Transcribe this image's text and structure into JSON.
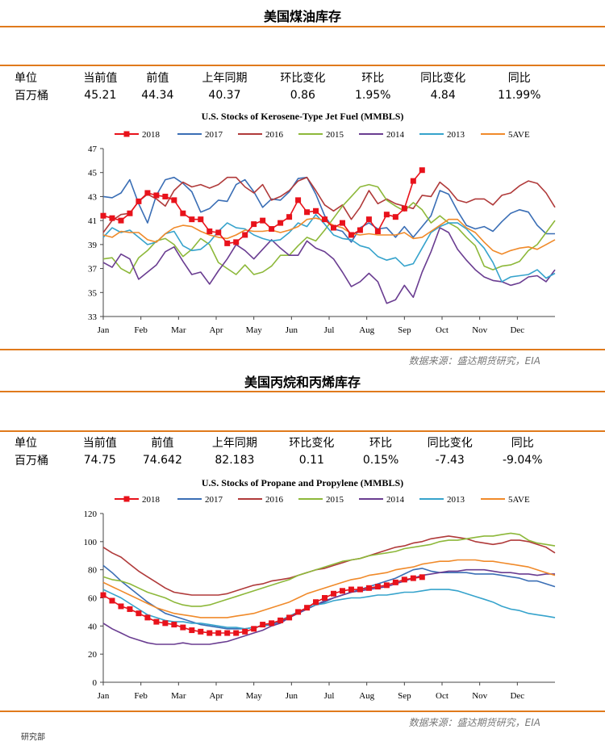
{
  "panels": [
    {
      "heading": "美国煤油库存",
      "stats_headers": [
        "单位",
        "当前值",
        "前值",
        "上年同期",
        "环比变化",
        "环比",
        "同比变化",
        "同比"
      ],
      "stats_values": [
        "百万桶",
        "45.21",
        "44.34",
        "40.37",
        "0.86",
        "1.95%",
        "4.84",
        "11.99%"
      ],
      "source": "数据来源：盛达期货研究，EIA"
    },
    {
      "heading": "美国丙烷和丙烯库存",
      "stats_headers": [
        "单位",
        "当前值",
        "前值",
        "上年同期",
        "环比变化",
        "环比",
        "同比变化",
        "同比"
      ],
      "stats_values": [
        "百万桶",
        "74.75",
        "74.642",
        "82.183",
        "0.11",
        "0.15%",
        "-7.43",
        "-9.04%"
      ],
      "source": "数据来源：盛达期货研究，EIA"
    }
  ],
  "footer_fragment": "研究部",
  "chart_data": [
    {
      "type": "line",
      "title": "U.S.  Stocks of Kerosene-Type Jet Fuel (MMBLS)",
      "xlabel": "",
      "ylabel": "",
      "x_ticks": [
        "Jan",
        "Feb",
        "Mar",
        "Apr",
        "May",
        "Jun",
        "Jul",
        "Aug",
        "Sep",
        "Oct",
        "Nov",
        "Dec"
      ],
      "y_ticks": [
        33,
        35,
        37,
        39,
        41,
        43,
        45,
        47
      ],
      "ylim": [
        33,
        47
      ],
      "x_domain_weeks": [
        1,
        52
      ],
      "legend_position": "top",
      "grid": false,
      "series": [
        {
          "name": "2018",
          "color": "#e8121b",
          "marker": "square",
          "weeks": [
            1,
            2,
            3,
            4,
            5,
            6,
            7,
            8,
            9,
            10,
            11,
            12,
            13,
            14,
            15,
            16,
            17,
            18,
            19,
            20,
            21,
            22,
            23,
            24,
            25,
            26,
            27,
            28,
            29,
            30,
            31,
            32,
            33,
            34,
            35,
            36,
            37
          ],
          "values": [
            41.4,
            41.2,
            41.0,
            41.6,
            42.6,
            43.3,
            43.1,
            43.0,
            42.7,
            41.6,
            41.1,
            41.1,
            40.1,
            40.0,
            39.1,
            39.2,
            39.8,
            40.7,
            41.0,
            40.3,
            40.8,
            41.3,
            42.7,
            41.7,
            41.8,
            41.1,
            40.4,
            40.8,
            39.8,
            40.2,
            41.1,
            40.1,
            41.5,
            41.3,
            42.0,
            44.3,
            45.2
          ]
        },
        {
          "name": "2017",
          "color": "#3a6eb5",
          "values": [
            43.0,
            42.9,
            43.3,
            44.4,
            42.4,
            40.8,
            43.1,
            44.4,
            44.6,
            44.1,
            43.4,
            41.7,
            42.0,
            42.7,
            42.6,
            44.0,
            44.4,
            43.4,
            42.1,
            42.8,
            42.7,
            43.4,
            44.5,
            44.6,
            43.2,
            41.4,
            40.3,
            40.1,
            39.2,
            40.4,
            40.8,
            40.3,
            40.4,
            39.6,
            40.5,
            39.6,
            40.5,
            41.4,
            43.5,
            43.2,
            41.8,
            40.6,
            40.3,
            40.5,
            40.1,
            40.9,
            41.6,
            41.9,
            41.7,
            40.6,
            39.9,
            39.9
          ]
        },
        {
          "name": "2016",
          "color": "#b03a3a",
          "values": [
            40.0,
            41.0,
            41.5,
            41.6,
            42.6,
            43.2,
            42.8,
            42.2,
            43.5,
            44.2,
            43.8,
            44.0,
            43.7,
            44.0,
            44.6,
            44.6,
            43.8,
            43.3,
            44.0,
            42.7,
            43.0,
            43.5,
            44.3,
            44.6,
            43.5,
            42.3,
            41.8,
            42.3,
            41.1,
            42.1,
            43.5,
            42.4,
            42.8,
            42.4,
            42.2,
            42.0,
            43.1,
            43.0,
            44.2,
            43.6,
            42.7,
            42.5,
            42.8,
            42.8,
            42.3,
            43.1,
            43.3,
            43.9,
            44.3,
            44.1,
            43.3,
            42.1
          ]
        },
        {
          "name": "2015",
          "color": "#8db83a",
          "values": [
            37.8,
            37.9,
            37.0,
            36.6,
            37.9,
            38.5,
            39.3,
            39.5,
            39.0,
            38.0,
            38.6,
            39.5,
            39.0,
            37.5,
            37.0,
            36.5,
            37.3,
            36.5,
            36.7,
            37.2,
            38.1,
            38.1,
            38.9,
            39.6,
            39.3,
            40.2,
            41.2,
            42.2,
            43.0,
            43.8,
            44.0,
            43.8,
            42.7,
            42.2,
            41.8,
            42.5,
            41.9,
            40.8,
            41.4,
            40.8,
            40.4,
            39.6,
            38.9,
            37.2,
            36.9,
            37.2,
            37.3,
            37.6,
            38.5,
            39.0,
            40.0,
            41.0
          ]
        },
        {
          "name": "2014",
          "color": "#6a3d91",
          "values": [
            37.5,
            37.1,
            38.2,
            37.8,
            36.1,
            36.7,
            37.3,
            38.4,
            38.8,
            37.6,
            36.5,
            36.7,
            35.7,
            36.8,
            37.8,
            39.0,
            38.5,
            37.8,
            38.6,
            39.4,
            38.7,
            38.1,
            38.1,
            39.3,
            38.7,
            38.4,
            37.8,
            36.7,
            35.5,
            35.9,
            36.6,
            35.9,
            34.1,
            34.4,
            35.6,
            34.6,
            36.7,
            38.4,
            40.4,
            40.0,
            38.6,
            37.7,
            36.9,
            36.3,
            36.0,
            35.9,
            35.6,
            35.8,
            36.3,
            36.4,
            35.9,
            36.9
          ]
        },
        {
          "name": "2013",
          "color": "#36a3cc",
          "values": [
            39.6,
            40.4,
            40.0,
            40.2,
            39.6,
            39.0,
            39.2,
            39.9,
            40.1,
            38.9,
            38.5,
            38.6,
            39.2,
            40.1,
            40.8,
            40.4,
            40.3,
            39.8,
            39.5,
            39.3,
            39.4,
            40.0,
            40.8,
            40.5,
            41.5,
            40.7,
            39.8,
            39.5,
            39.4,
            38.9,
            38.7,
            38.0,
            37.7,
            37.9,
            37.2,
            37.4,
            38.7,
            40.0,
            40.5,
            40.8,
            40.8,
            40.3,
            39.5,
            38.7,
            37.5,
            35.9,
            36.3,
            36.4,
            36.5,
            36.9,
            36.2,
            36.6
          ]
        },
        {
          "name": "5AVE",
          "color": "#f08a2a",
          "values": [
            39.8,
            39.6,
            40.1,
            40.0,
            40.0,
            39.4,
            39.2,
            39.9,
            40.4,
            40.6,
            40.5,
            40.1,
            39.8,
            39.6,
            39.5,
            39.8,
            40.2,
            40.1,
            40.1,
            40.2,
            40.0,
            40.2,
            40.5,
            41.1,
            41.2,
            41.0,
            40.6,
            40.4,
            39.9,
            39.8,
            39.9,
            39.8,
            39.8,
            39.8,
            40.0,
            39.5,
            39.6,
            40.1,
            40.6,
            41.1,
            41.1,
            40.4,
            40.0,
            39.2,
            38.5,
            38.2,
            38.5,
            38.7,
            38.8,
            38.6,
            39.0,
            39.4
          ]
        }
      ]
    },
    {
      "type": "line",
      "title": "U.S.  Stocks of Propane and Propylene (MMBLS)",
      "xlabel": "",
      "ylabel": "",
      "x_ticks": [
        "Jan",
        "Feb",
        "Mar",
        "Apr",
        "May",
        "Jun",
        "Jul",
        "Aug",
        "Sep",
        "Oct",
        "Nov",
        "Dec"
      ],
      "y_ticks": [
        0,
        20,
        40,
        60,
        80,
        100,
        120
      ],
      "ylim": [
        0,
        120
      ],
      "x_domain_weeks": [
        1,
        52
      ],
      "legend_position": "top",
      "grid": false,
      "series": [
        {
          "name": "2018",
          "color": "#e8121b",
          "marker": "square",
          "weeks": [
            1,
            2,
            3,
            4,
            5,
            6,
            7,
            8,
            9,
            10,
            11,
            12,
            13,
            14,
            15,
            16,
            17,
            18,
            19,
            20,
            21,
            22,
            23,
            24,
            25,
            26,
            27,
            28,
            29,
            30,
            31,
            32,
            33,
            34,
            35,
            36,
            37
          ],
          "values": [
            62,
            58,
            54,
            52,
            49,
            46,
            43,
            42,
            41,
            39,
            37,
            36,
            35,
            35,
            35,
            35,
            36,
            38,
            41,
            42,
            44,
            46,
            50,
            53,
            57,
            60,
            63,
            65,
            66,
            66,
            67,
            68,
            69,
            71,
            73,
            74,
            74.75
          ]
        },
        {
          "name": "2017",
          "color": "#3a6eb5",
          "values": [
            83,
            78,
            72,
            67,
            62,
            57,
            53,
            49,
            47,
            45,
            43,
            41,
            40,
            39,
            38,
            38,
            38,
            39,
            40,
            41,
            43,
            46,
            49,
            52,
            55,
            57,
            60,
            62,
            64,
            66,
            68,
            70,
            72,
            74,
            77,
            80,
            81,
            79,
            78,
            78,
            78,
            78,
            77,
            77,
            77,
            76,
            75,
            74,
            72,
            72,
            70,
            68
          ]
        },
        {
          "name": "2016",
          "color": "#b03a3a",
          "values": [
            96,
            92,
            89,
            84,
            79,
            75,
            71,
            67,
            64,
            63,
            62,
            62,
            62,
            62,
            63,
            65,
            67,
            69,
            70,
            72,
            73,
            74,
            76,
            78,
            80,
            81,
            83,
            85,
            87,
            88,
            90,
            92,
            94,
            96,
            97,
            99,
            100,
            102,
            103,
            104,
            103,
            102,
            100,
            99,
            98,
            99,
            101,
            101,
            100,
            98,
            96,
            92
          ]
        },
        {
          "name": "2015",
          "color": "#8db83a",
          "values": [
            75,
            73,
            72,
            70,
            67,
            64,
            62,
            60,
            57,
            55,
            54,
            54,
            55,
            57,
            59,
            61,
            63,
            65,
            67,
            69,
            71,
            73,
            76,
            78,
            80,
            82,
            84,
            86,
            87,
            88,
            90,
            91,
            92,
            93,
            95,
            96,
            97,
            98,
            100,
            101,
            101,
            102,
            103,
            104,
            104,
            105,
            106,
            105,
            101,
            99,
            98,
            97
          ]
        },
        {
          "name": "2014",
          "color": "#6a3d91",
          "values": [
            42,
            38,
            35,
            32,
            30,
            28,
            27,
            27,
            27,
            28,
            27,
            27,
            27,
            28,
            29,
            31,
            33,
            35,
            37,
            40,
            42,
            46,
            49,
            52,
            55,
            58,
            60,
            62,
            64,
            65,
            66,
            67,
            68,
            70,
            72,
            74,
            76,
            77,
            78,
            79,
            79,
            80,
            80,
            80,
            79,
            78,
            78,
            77,
            77,
            76,
            77,
            77
          ]
        },
        {
          "name": "2013",
          "color": "#36a3cc",
          "values": [
            66,
            63,
            60,
            56,
            52,
            48,
            46,
            44,
            43,
            43,
            42,
            42,
            41,
            40,
            39,
            39,
            38,
            39,
            40,
            42,
            44,
            47,
            50,
            53,
            55,
            56,
            58,
            59,
            60,
            60,
            61,
            62,
            62,
            63,
            64,
            64,
            65,
            66,
            66,
            66,
            65,
            63,
            61,
            59,
            57,
            54,
            52,
            51,
            49,
            48,
            47,
            46
          ]
        },
        {
          "name": "5AVE",
          "color": "#f08a2a",
          "values": [
            71,
            68,
            65,
            62,
            59,
            56,
            53,
            51,
            49,
            48,
            47,
            46,
            46,
            46,
            46,
            47,
            48,
            49,
            51,
            53,
            55,
            57,
            60,
            63,
            65,
            67,
            69,
            71,
            73,
            74,
            76,
            77,
            78,
            80,
            81,
            82,
            84,
            85,
            86,
            86,
            87,
            87,
            87,
            86,
            86,
            85,
            84,
            83,
            82,
            80,
            78,
            76
          ]
        }
      ]
    }
  ]
}
